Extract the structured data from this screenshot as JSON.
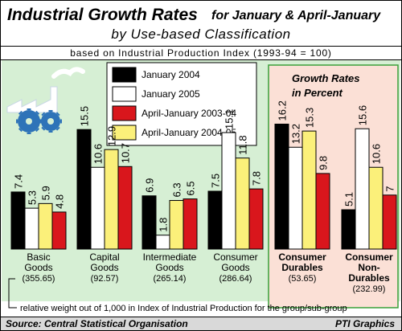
{
  "header": {
    "title": "Industrial Growth Rates",
    "period": "for January & April-January",
    "subtitle": "by Use-based Classification",
    "basis": "based on Industrial Production Index (1993-94 = 100)"
  },
  "footer": {
    "source": "Source: Central Statistical Organisation",
    "credit": "PTI Graphics"
  },
  "chart_data": {
    "type": "bar",
    "title": "Industrial Growth Rates",
    "unit_label": [
      "Growth Rates",
      "in Percent"
    ],
    "categories": [
      {
        "lines": [
          "Basic",
          "Goods"
        ],
        "weight": "(355.65)"
      },
      {
        "lines": [
          "Capital",
          "Goods"
        ],
        "weight": "(92.57)"
      },
      {
        "lines": [
          "Intermediate",
          "Goods"
        ],
        "weight": "(265.14)"
      },
      {
        "lines": [
          "Consumer",
          "Goods"
        ],
        "weight": "(286.64)"
      },
      {
        "lines": [
          "Consumer",
          "Durables"
        ],
        "weight": "(53.65)"
      },
      {
        "lines": [
          "Consumer",
          "Non-",
          "Durables"
        ],
        "weight": "(232.99)"
      }
    ],
    "series": [
      {
        "name": "January 2004",
        "color": "#000000",
        "values": [
          7.4,
          15.5,
          6.9,
          7.5,
          16.2,
          5.1
        ]
      },
      {
        "name": "January 2005",
        "color": "#ffffff",
        "values": [
          5.3,
          10.6,
          1.8,
          15.1,
          13.2,
          15.6
        ]
      },
      {
        "name": "April-January 2003-04",
        "color": "#d9161c",
        "values": [
          4.8,
          10.7,
          6.5,
          7.8,
          9.8,
          7.0
        ]
      },
      {
        "name": "April-January 2004-05",
        "color": "#fbf07a",
        "values": [
          5.9,
          12.9,
          6.3,
          11.8,
          15.3,
          10.6
        ]
      }
    ],
    "draw_order": [
      0,
      1,
      3,
      2
    ],
    "ylim": [
      0,
      17.5
    ],
    "highlighted_categories": [
      4,
      5
    ],
    "footnote": "relative weight out of 1,000 in Index of Industrial Production for the group/sub-group",
    "legend_placement": "top-center",
    "colors": {
      "panel": "#d6efd4",
      "highlight": "#fbe0d6",
      "highlight_border": "#3aa03a",
      "icon": "#2e73b8"
    }
  }
}
